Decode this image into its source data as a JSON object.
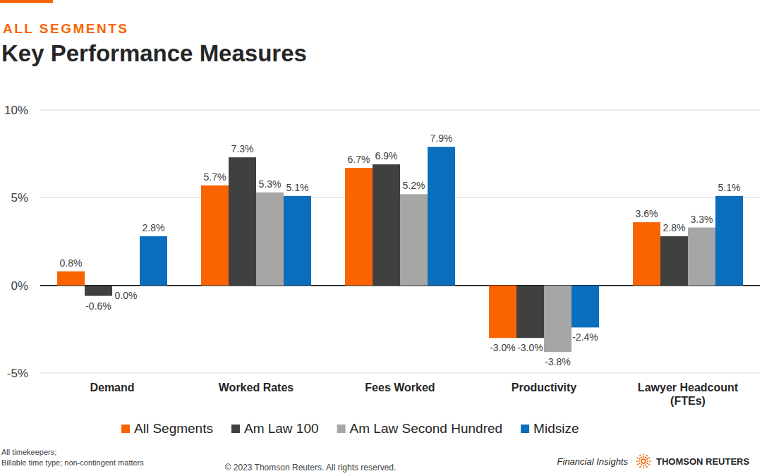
{
  "chart_data": {
    "type": "bar",
    "subtitle": "ALL SEGMENTS",
    "title": "Key Performance Measures",
    "categories": [
      "Demand",
      "Worked Rates",
      "Fees Worked",
      "Productivity",
      "Lawyer Headcount (FTEs)"
    ],
    "series": [
      {
        "name": "All Segments",
        "color": "#fa6400",
        "values": [
          0.8,
          5.7,
          6.7,
          -3.0,
          3.6
        ],
        "value_labels": [
          "0.8%",
          "5.7%",
          "6.7%",
          "-3.0%",
          "3.6%"
        ]
      },
      {
        "name": "Am Law 100",
        "color": "#404040",
        "values": [
          -0.6,
          7.3,
          6.9,
          -3.0,
          2.8
        ],
        "value_labels": [
          "-0.6%",
          "7.3%",
          "6.9%",
          "-3.0%",
          "2.8%"
        ]
      },
      {
        "name": "Am Law Second Hundred",
        "color": "#a6a6a6",
        "values": [
          0.0,
          5.3,
          5.2,
          -3.8,
          3.3
        ],
        "value_labels": [
          "0.0%",
          "5.3%",
          "5.2%",
          "-3.8%",
          "3.3%"
        ]
      },
      {
        "name": "Midsize",
        "color": "#0a6ebd",
        "values": [
          2.8,
          5.1,
          7.9,
          -2.4,
          5.1
        ],
        "value_labels": [
          "2.8%",
          "5.1%",
          "7.9%",
          "-2.4%",
          "5.1%"
        ]
      }
    ],
    "ylim": [
      -5,
      10
    ],
    "yticks": [
      {
        "value": -5,
        "label": "-5%"
      },
      {
        "value": 0,
        "label": "0%"
      },
      {
        "value": 5,
        "label": "5%"
      },
      {
        "value": 10,
        "label": "10%"
      }
    ],
    "grid": true,
    "legend": "bottom",
    "data_labels": true,
    "annotations": [
      "All timekeepers;",
      "Billable time type; non-contingent matters",
      "© 2023 Thomson Reuters. All rights reserved.",
      "Financial Insights",
      "THOMSON REUTERS"
    ]
  }
}
